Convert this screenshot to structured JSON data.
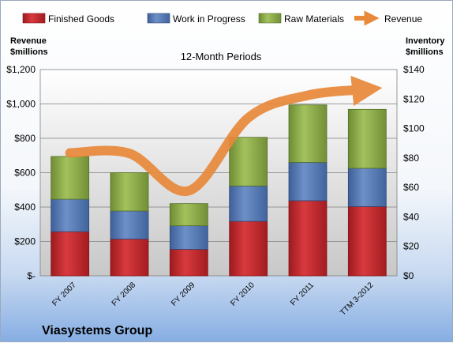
{
  "chart_data": {
    "type": "bar",
    "subtitle": "12-Month Periods",
    "left_axis_title": [
      "Revenue",
      "$millions"
    ],
    "right_axis_title": [
      "Inventory",
      "$millions"
    ],
    "company": "Viasystems Group",
    "categories": [
      "FY 2007",
      "FY 2008",
      "FY 2009",
      "FY 2010",
      "FY 2011",
      "TTM 3-2012"
    ],
    "left_axis": {
      "min": 0,
      "max": 1200,
      "step": 200,
      "tick_labels": [
        "$-",
        "$200",
        "$400",
        "$600",
        "$800",
        "$1,000",
        "$1,200"
      ]
    },
    "right_axis": {
      "min": 0,
      "max": 140,
      "step": 20,
      "tick_labels": [
        "$0",
        "$20",
        "$40",
        "$60",
        "$80",
        "$100",
        "$120",
        "$140"
      ]
    },
    "series": [
      {
        "name": "Finished Goods",
        "axis": "right",
        "color": "#c0262b",
        "values": [
          30,
          25,
          18,
          37,
          51,
          47
        ]
      },
      {
        "name": "Work in Progress",
        "axis": "right",
        "color": "#4f73b0",
        "values": [
          22,
          19,
          16,
          24,
          26,
          26
        ]
      },
      {
        "name": "Raw Materials",
        "axis": "right",
        "color": "#8aab45",
        "values": [
          29,
          26,
          15,
          33,
          39,
          40
        ]
      },
      {
        "name": "Revenue",
        "axis": "left",
        "type": "line",
        "color": "#e8893a",
        "values": [
          715,
          712,
          495,
          920,
          1050,
          1085
        ]
      }
    ],
    "grid": true,
    "legend_position": "top"
  }
}
